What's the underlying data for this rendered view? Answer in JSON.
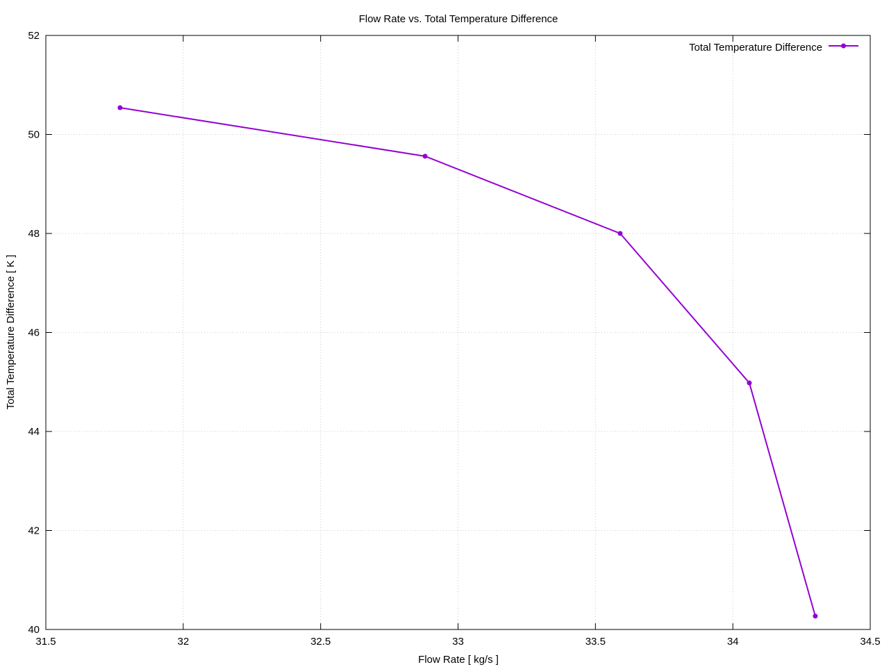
{
  "chart_data": {
    "type": "line",
    "title": "Flow Rate vs. Total Temperature Difference",
    "xlabel": "Flow Rate [ kg/s ]",
    "ylabel": "Total Temperature Difference [ K ]",
    "xlim": [
      31.5,
      34.5
    ],
    "ylim": [
      40,
      52
    ],
    "xticks": [
      "31.5",
      "32",
      "32.5",
      "33",
      "33.5",
      "34",
      "34.5"
    ],
    "yticks": [
      "40",
      "42",
      "44",
      "46",
      "48",
      "50",
      "52"
    ],
    "grid": true,
    "legend_position": "top-right",
    "series": [
      {
        "name": "Total Temperature Difference",
        "color": "#9400d3",
        "x": [
          31.77,
          32.88,
          33.59,
          34.06,
          34.3
        ],
        "y": [
          50.54,
          49.56,
          48.0,
          44.98,
          40.27
        ]
      }
    ]
  }
}
